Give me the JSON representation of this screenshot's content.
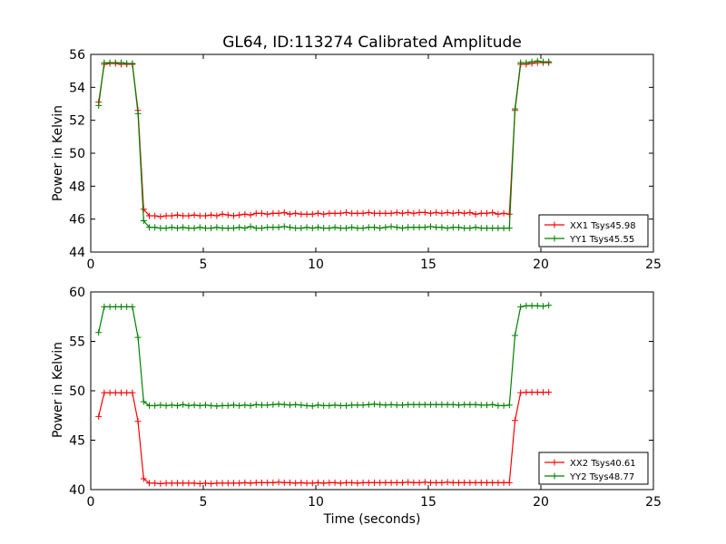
{
  "chart_data": [
    {
      "type": "line",
      "title": "GL64, ID:113274 Calibrated Amplitude",
      "xlabel": "",
      "ylabel": "Power in Kelvin",
      "xlim": [
        0,
        25
      ],
      "ylim": [
        44,
        56
      ],
      "xticks": [
        "0",
        "5",
        "10",
        "15",
        "20",
        "25"
      ],
      "yticks": [
        "44",
        "46",
        "48",
        "50",
        "52",
        "54",
        "56"
      ],
      "legend_position": "lower-right",
      "grid": false,
      "x": [
        0.35,
        0.6,
        0.85,
        1.1,
        1.35,
        1.6,
        1.85,
        2.1,
        2.35,
        2.6,
        2.85,
        3.1,
        3.35,
        3.6,
        3.85,
        4.1,
        4.35,
        4.6,
        4.85,
        5.1,
        5.35,
        5.6,
        5.85,
        6.1,
        6.35,
        6.6,
        6.85,
        7.1,
        7.35,
        7.6,
        7.85,
        8.1,
        8.35,
        8.6,
        8.85,
        9.1,
        9.35,
        9.6,
        9.85,
        10.1,
        10.35,
        10.6,
        10.85,
        11.1,
        11.35,
        11.6,
        11.85,
        12.1,
        12.35,
        12.6,
        12.85,
        13.1,
        13.35,
        13.6,
        13.85,
        14.1,
        14.35,
        14.6,
        14.85,
        15.1,
        15.35,
        15.6,
        15.85,
        16.1,
        16.35,
        16.6,
        16.85,
        17.1,
        17.35,
        17.6,
        17.85,
        18.1,
        18.35,
        18.6,
        18.85,
        19.1,
        19.35,
        19.6,
        19.85,
        20.1,
        20.35
      ],
      "series": [
        {
          "name": "XX1 Tsys45.98",
          "color": "#ff0000",
          "values": [
            53.1,
            55.4,
            55.45,
            55.45,
            55.4,
            55.4,
            55.4,
            52.6,
            46.6,
            46.2,
            46.2,
            46.15,
            46.2,
            46.2,
            46.25,
            46.2,
            46.2,
            46.25,
            46.2,
            46.2,
            46.25,
            46.2,
            46.3,
            46.25,
            46.2,
            46.25,
            46.3,
            46.25,
            46.35,
            46.35,
            46.3,
            46.35,
            46.35,
            46.4,
            46.3,
            46.35,
            46.3,
            46.3,
            46.3,
            46.35,
            46.3,
            46.35,
            46.35,
            46.35,
            46.4,
            46.35,
            46.35,
            46.35,
            46.4,
            46.35,
            46.35,
            46.35,
            46.35,
            46.4,
            46.35,
            46.4,
            46.35,
            46.4,
            46.4,
            46.35,
            46.4,
            46.35,
            46.4,
            46.35,
            46.4,
            46.35,
            46.4,
            46.3,
            46.35,
            46.35,
            46.4,
            46.3,
            46.35,
            46.3,
            52.6,
            55.4,
            55.4,
            55.45,
            55.5,
            55.5,
            55.5
          ]
        },
        {
          "name": "YY1 Tsys45.55",
          "color": "#008000",
          "values": [
            52.9,
            55.5,
            55.5,
            55.5,
            55.5,
            55.45,
            55.45,
            52.4,
            45.9,
            45.5,
            45.5,
            45.45,
            45.45,
            45.5,
            45.45,
            45.5,
            45.45,
            45.45,
            45.5,
            45.45,
            45.45,
            45.5,
            45.45,
            45.45,
            45.45,
            45.5,
            45.45,
            45.55,
            45.45,
            45.45,
            45.5,
            45.5,
            45.5,
            45.55,
            45.5,
            45.45,
            45.45,
            45.5,
            45.45,
            45.5,
            45.45,
            45.45,
            45.5,
            45.45,
            45.45,
            45.5,
            45.45,
            45.45,
            45.5,
            45.5,
            45.45,
            45.5,
            45.55,
            45.5,
            45.45,
            45.5,
            45.5,
            45.5,
            45.5,
            45.55,
            45.5,
            45.5,
            45.45,
            45.5,
            45.5,
            45.45,
            45.45,
            45.5,
            45.45,
            45.45,
            45.45,
            45.45,
            45.45,
            45.45,
            52.7,
            55.5,
            55.5,
            55.55,
            55.6,
            55.55,
            55.55
          ]
        }
      ]
    },
    {
      "type": "line",
      "title": "",
      "xlabel": "Time (seconds)",
      "ylabel": "Power in Kelvin",
      "xlim": [
        0,
        25
      ],
      "ylim": [
        40,
        60
      ],
      "xticks": [
        "0",
        "5",
        "10",
        "15",
        "20",
        "25"
      ],
      "yticks": [
        "40",
        "45",
        "50",
        "55",
        "60"
      ],
      "legend_position": "lower-right",
      "grid": false,
      "x": [
        0.35,
        0.6,
        0.85,
        1.1,
        1.35,
        1.6,
        1.85,
        2.1,
        2.35,
        2.6,
        2.85,
        3.1,
        3.35,
        3.6,
        3.85,
        4.1,
        4.35,
        4.6,
        4.85,
        5.1,
        5.35,
        5.6,
        5.85,
        6.1,
        6.35,
        6.6,
        6.85,
        7.1,
        7.35,
        7.6,
        7.85,
        8.1,
        8.35,
        8.6,
        8.85,
        9.1,
        9.35,
        9.6,
        9.85,
        10.1,
        10.35,
        10.6,
        10.85,
        11.1,
        11.35,
        11.6,
        11.85,
        12.1,
        12.35,
        12.6,
        12.85,
        13.1,
        13.35,
        13.6,
        13.85,
        14.1,
        14.35,
        14.6,
        14.85,
        15.1,
        15.35,
        15.6,
        15.85,
        16.1,
        16.35,
        16.6,
        16.85,
        17.1,
        17.35,
        17.6,
        17.85,
        18.1,
        18.35,
        18.6,
        18.85,
        19.1,
        19.35,
        19.6,
        19.85,
        20.1,
        20.35
      ],
      "series": [
        {
          "name": "XX2 Tsys40.61",
          "color": "#ff0000",
          "values": [
            47.4,
            49.8,
            49.8,
            49.8,
            49.8,
            49.8,
            49.8,
            46.9,
            41.1,
            40.65,
            40.65,
            40.6,
            40.65,
            40.65,
            40.65,
            40.65,
            40.65,
            40.65,
            40.6,
            40.65,
            40.6,
            40.65,
            40.65,
            40.65,
            40.65,
            40.65,
            40.7,
            40.65,
            40.7,
            40.7,
            40.7,
            40.7,
            40.75,
            40.7,
            40.7,
            40.65,
            40.7,
            40.65,
            40.65,
            40.7,
            40.65,
            40.7,
            40.7,
            40.65,
            40.7,
            40.7,
            40.65,
            40.7,
            40.7,
            40.7,
            40.7,
            40.7,
            40.7,
            40.7,
            40.7,
            40.75,
            40.7,
            40.7,
            40.75,
            40.7,
            40.7,
            40.7,
            40.75,
            40.7,
            40.7,
            40.7,
            40.7,
            40.7,
            40.7,
            40.7,
            40.7,
            40.7,
            40.7,
            40.7,
            47.0,
            49.8,
            49.85,
            49.85,
            49.85,
            49.85,
            49.85
          ]
        },
        {
          "name": "YY2 Tsys48.77",
          "color": "#008000",
          "values": [
            55.9,
            58.5,
            58.5,
            58.5,
            58.5,
            58.5,
            58.5,
            55.4,
            48.9,
            48.5,
            48.5,
            48.55,
            48.5,
            48.55,
            48.5,
            48.6,
            48.5,
            48.55,
            48.5,
            48.55,
            48.5,
            48.45,
            48.5,
            48.5,
            48.55,
            48.5,
            48.55,
            48.5,
            48.6,
            48.55,
            48.55,
            48.6,
            48.65,
            48.6,
            48.55,
            48.6,
            48.55,
            48.5,
            48.45,
            48.55,
            48.5,
            48.5,
            48.55,
            48.5,
            48.5,
            48.55,
            48.55,
            48.55,
            48.6,
            48.65,
            48.6,
            48.55,
            48.6,
            48.55,
            48.55,
            48.6,
            48.6,
            48.6,
            48.6,
            48.6,
            48.6,
            48.6,
            48.6,
            48.6,
            48.55,
            48.6,
            48.6,
            48.6,
            48.55,
            48.55,
            48.6,
            48.5,
            48.5,
            48.55,
            55.6,
            58.5,
            58.6,
            58.6,
            58.6,
            58.55,
            58.65
          ]
        }
      ]
    }
  ]
}
